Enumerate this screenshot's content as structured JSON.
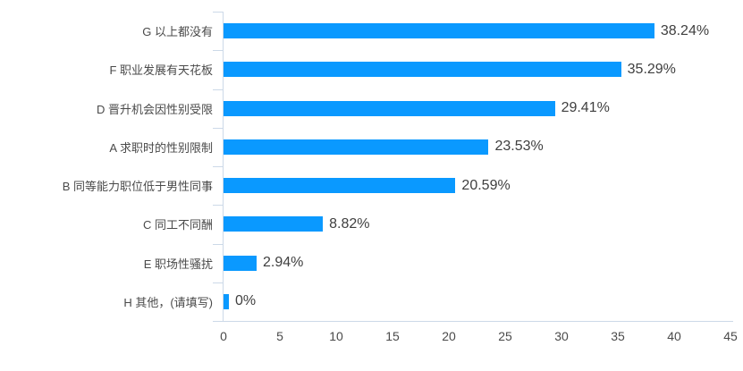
{
  "chart_data": {
    "type": "bar",
    "orientation": "horizontal",
    "title": "",
    "xlabel": "",
    "ylabel": "",
    "categories": [
      "G 以上都没有",
      "F 职业发展有天花板",
      "D 晋升机会因性别受限",
      "A 求职时的性别限制",
      "B 同等能力职位低于男性同事",
      "C 同工不同酬",
      "E 职场性骚扰",
      "H 其他，(请填写)"
    ],
    "values": [
      38.24,
      35.29,
      29.41,
      23.53,
      20.59,
      8.82,
      2.94,
      0
    ],
    "value_labels": [
      "38.24%",
      "35.29%",
      "29.41%",
      "23.53%",
      "20.59%",
      "8.82%",
      "2.94%",
      "0%"
    ],
    "x_ticks": [
      "0",
      "5",
      "10",
      "15",
      "20",
      "25",
      "30",
      "35",
      "40",
      "45"
    ],
    "xlim": [
      0,
      45
    ],
    "grid": false,
    "legend_position": "none",
    "bar_color": "#0a99ff",
    "axis_color": "#ccd9e8",
    "label_color": "#4a4a4a",
    "value_color": "#3f3f3f"
  }
}
